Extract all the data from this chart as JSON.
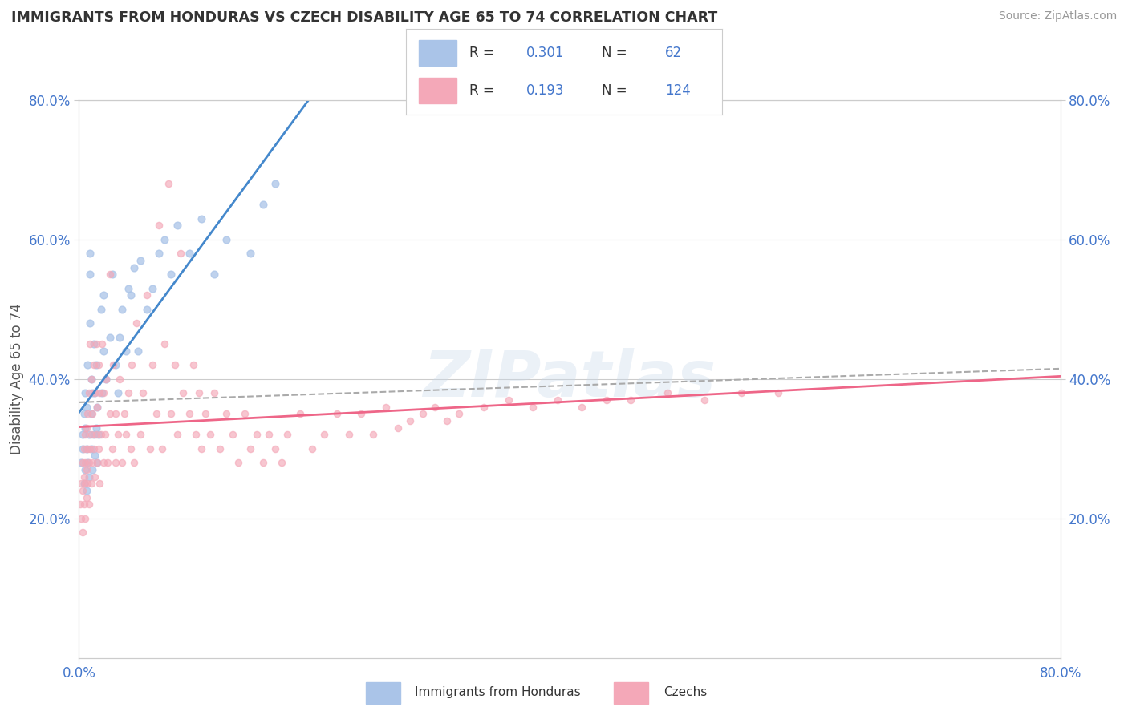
{
  "title": "IMMIGRANTS FROM HONDURAS VS CZECH DISABILITY AGE 65 TO 74 CORRELATION CHART",
  "source_text": "Source: ZipAtlas.com",
  "ylabel": "Disability Age 65 to 74",
  "xlim": [
    0.0,
    0.8
  ],
  "ylim": [
    0.0,
    0.8
  ],
  "ytick_positions": [
    0.2,
    0.4,
    0.6,
    0.8
  ],
  "ytick_labels": [
    "20.0%",
    "40.0%",
    "60.0%",
    "80.0%"
  ],
  "grid_color": "#cccccc",
  "background_color": "#ffffff",
  "watermark_text": "ZIPatlas",
  "series": [
    {
      "label": "Immigrants from Honduras",
      "R": 0.301,
      "N": 62,
      "color": "#aac4e8",
      "line_color": "#4488cc",
      "scatter_alpha": 0.75,
      "scatter_size": 40,
      "x": [
        0.002,
        0.003,
        0.003,
        0.004,
        0.004,
        0.005,
        0.005,
        0.005,
        0.006,
        0.006,
        0.006,
        0.007,
        0.007,
        0.008,
        0.008,
        0.009,
        0.009,
        0.009,
        0.01,
        0.01,
        0.01,
        0.011,
        0.011,
        0.012,
        0.012,
        0.013,
        0.013,
        0.014,
        0.014,
        0.015,
        0.015,
        0.016,
        0.018,
        0.019,
        0.02,
        0.02,
        0.022,
        0.025,
        0.027,
        0.03,
        0.032,
        0.033,
        0.035,
        0.038,
        0.04,
        0.042,
        0.045,
        0.048,
        0.05,
        0.055,
        0.06,
        0.065,
        0.07,
        0.075,
        0.08,
        0.09,
        0.1,
        0.11,
        0.12,
        0.14,
        0.15,
        0.16
      ],
      "y": [
        0.28,
        0.3,
        0.32,
        0.25,
        0.35,
        0.27,
        0.33,
        0.38,
        0.24,
        0.3,
        0.36,
        0.28,
        0.42,
        0.26,
        0.32,
        0.55,
        0.48,
        0.58,
        0.3,
        0.35,
        0.4,
        0.27,
        0.38,
        0.45,
        0.32,
        0.29,
        0.38,
        0.33,
        0.42,
        0.28,
        0.36,
        0.32,
        0.5,
        0.38,
        0.44,
        0.52,
        0.4,
        0.46,
        0.55,
        0.42,
        0.38,
        0.46,
        0.5,
        0.44,
        0.53,
        0.52,
        0.56,
        0.44,
        0.57,
        0.5,
        0.53,
        0.58,
        0.6,
        0.55,
        0.62,
        0.58,
        0.63,
        0.55,
        0.6,
        0.58,
        0.65,
        0.68
      ]
    },
    {
      "label": "Czechs",
      "R": 0.193,
      "N": 124,
      "color": "#f4a8b8",
      "line_color": "#ee6688",
      "scatter_alpha": 0.65,
      "scatter_size": 35,
      "x": [
        0.001,
        0.002,
        0.002,
        0.003,
        0.003,
        0.003,
        0.004,
        0.004,
        0.004,
        0.005,
        0.005,
        0.005,
        0.005,
        0.006,
        0.006,
        0.006,
        0.007,
        0.007,
        0.007,
        0.008,
        0.008,
        0.008,
        0.009,
        0.009,
        0.01,
        0.01,
        0.01,
        0.011,
        0.011,
        0.012,
        0.012,
        0.013,
        0.013,
        0.014,
        0.014,
        0.015,
        0.015,
        0.016,
        0.016,
        0.017,
        0.017,
        0.018,
        0.019,
        0.02,
        0.02,
        0.021,
        0.022,
        0.023,
        0.025,
        0.025,
        0.027,
        0.028,
        0.03,
        0.03,
        0.032,
        0.033,
        0.035,
        0.037,
        0.038,
        0.04,
        0.042,
        0.043,
        0.045,
        0.047,
        0.05,
        0.052,
        0.055,
        0.058,
        0.06,
        0.063,
        0.065,
        0.068,
        0.07,
        0.073,
        0.075,
        0.078,
        0.08,
        0.083,
        0.085,
        0.09,
        0.093,
        0.095,
        0.098,
        0.1,
        0.103,
        0.107,
        0.11,
        0.115,
        0.12,
        0.125,
        0.13,
        0.135,
        0.14,
        0.145,
        0.15,
        0.155,
        0.16,
        0.165,
        0.17,
        0.18,
        0.19,
        0.2,
        0.21,
        0.22,
        0.23,
        0.24,
        0.25,
        0.26,
        0.27,
        0.28,
        0.29,
        0.3,
        0.31,
        0.33,
        0.35,
        0.37,
        0.39,
        0.41,
        0.43,
        0.45,
        0.48,
        0.51,
        0.54,
        0.57
      ],
      "y": [
        0.22,
        0.2,
        0.25,
        0.18,
        0.24,
        0.28,
        0.22,
        0.26,
        0.3,
        0.2,
        0.25,
        0.28,
        0.32,
        0.23,
        0.27,
        0.33,
        0.25,
        0.3,
        0.35,
        0.22,
        0.28,
        0.38,
        0.3,
        0.45,
        0.25,
        0.32,
        0.4,
        0.28,
        0.35,
        0.3,
        0.42,
        0.26,
        0.38,
        0.32,
        0.45,
        0.28,
        0.36,
        0.3,
        0.42,
        0.25,
        0.38,
        0.32,
        0.45,
        0.28,
        0.38,
        0.32,
        0.4,
        0.28,
        0.35,
        0.55,
        0.3,
        0.42,
        0.28,
        0.35,
        0.32,
        0.4,
        0.28,
        0.35,
        0.32,
        0.38,
        0.3,
        0.42,
        0.28,
        0.48,
        0.32,
        0.38,
        0.52,
        0.3,
        0.42,
        0.35,
        0.62,
        0.3,
        0.45,
        0.68,
        0.35,
        0.42,
        0.32,
        0.58,
        0.38,
        0.35,
        0.42,
        0.32,
        0.38,
        0.3,
        0.35,
        0.32,
        0.38,
        0.3,
        0.35,
        0.32,
        0.28,
        0.35,
        0.3,
        0.32,
        0.28,
        0.32,
        0.3,
        0.28,
        0.32,
        0.35,
        0.3,
        0.32,
        0.35,
        0.32,
        0.35,
        0.32,
        0.36,
        0.33,
        0.34,
        0.35,
        0.36,
        0.34,
        0.35,
        0.36,
        0.37,
        0.36,
        0.37,
        0.36,
        0.37,
        0.37,
        0.38,
        0.37,
        0.38,
        0.38
      ]
    }
  ]
}
